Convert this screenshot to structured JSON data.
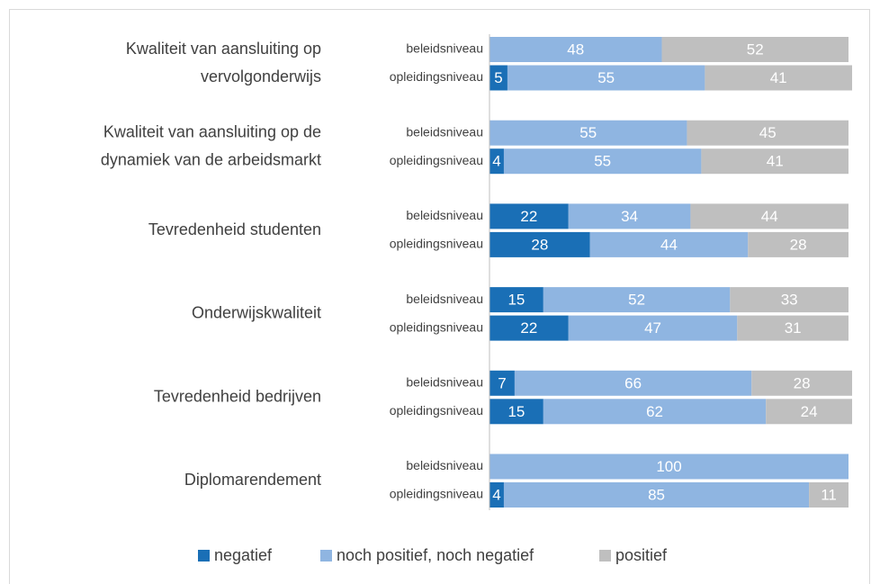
{
  "chart_data": {
    "type": "stacked-bar-horizontal",
    "groups": [
      [
        "Kwaliteit van aansluiting op",
        "vervolgonderwijs"
      ],
      [
        "Kwaliteit van aansluiting op de",
        "dynamiek van de arbeidsmarkt"
      ],
      [
        "Tevredenheid studenten"
      ],
      [
        "Onderwijskwaliteit"
      ],
      [
        "Tevredenheid bedrijven"
      ],
      [
        "Diplomarendement"
      ]
    ],
    "categories": [
      "beleidsniveau",
      "opleidingsniveau",
      "beleidsniveau",
      "opleidingsniveau",
      "beleidsniveau",
      "opleidingsniveau",
      "beleidsniveau",
      "opleidingsniveau",
      "beleidsniveau",
      "opleidingsniveau",
      "beleidsniveau",
      "opleidingsniveau"
    ],
    "series": [
      {
        "name": "negatief",
        "color": "#1a6fb6",
        "values": [
          0,
          5,
          0,
          4,
          22,
          28,
          15,
          22,
          7,
          15,
          0,
          4
        ]
      },
      {
        "name": "noch positief, noch negatief",
        "color": "#8fb5e1",
        "values": [
          48,
          55,
          55,
          55,
          34,
          44,
          52,
          47,
          66,
          62,
          100,
          85
        ]
      },
      {
        "name": "positief",
        "color": "#bfbfbf",
        "values": [
          52,
          41,
          45,
          41,
          44,
          28,
          33,
          31,
          28,
          24,
          0,
          11
        ]
      }
    ],
    "xlim": [
      0,
      100
    ],
    "legend": "bottom"
  }
}
